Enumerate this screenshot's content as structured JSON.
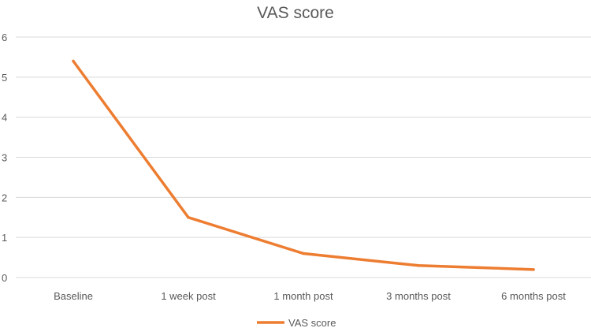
{
  "chart_data": {
    "type": "line",
    "title": "VAS score",
    "xlabel": "",
    "ylabel": "",
    "categories": [
      "Baseline",
      "1 week post",
      "1 month post",
      "3 months post",
      "6 months post"
    ],
    "series": [
      {
        "name": "VAS score",
        "values": [
          5.4,
          1.5,
          0.6,
          0.3,
          0.2
        ],
        "color": "#ED7D31"
      }
    ],
    "ylim": [
      0,
      6
    ],
    "yticks": [
      "0",
      "1",
      "2",
      "3",
      "4",
      "5",
      "6"
    ],
    "grid": true,
    "legend": "bottom",
    "gridline_color": "#D9D9D9",
    "text_color": "#595959"
  }
}
